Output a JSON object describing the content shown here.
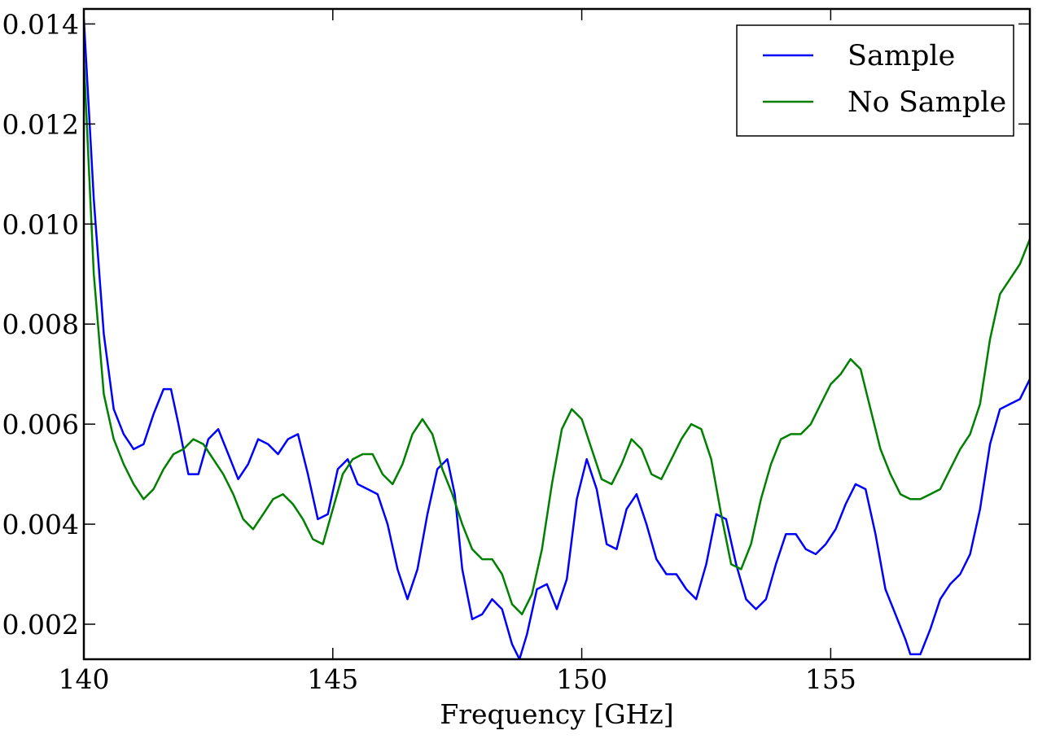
{
  "chart_data": {
    "type": "line",
    "title": "",
    "xlabel": "Frequency [GHz]",
    "ylabel": "",
    "xlim": [
      140,
      159
    ],
    "ylim": [
      0.0013,
      0.0143
    ],
    "grid": false,
    "legend_position": "top-right",
    "xticks": [
      140,
      145,
      150,
      155
    ],
    "xtick_labels": [
      "140",
      "145",
      "150",
      "155"
    ],
    "yticks": [
      0.002,
      0.004,
      0.006,
      0.008,
      0.01,
      0.012,
      0.014
    ],
    "ytick_labels": [
      "0.002",
      "0.004",
      "0.006",
      "0.008",
      "0.010",
      "0.012",
      "0.014"
    ],
    "series": [
      {
        "name": "Sample",
        "color": "#0000ff",
        "points": [
          [
            140.0,
            0.0141
          ],
          [
            140.2,
            0.0105
          ],
          [
            140.4,
            0.0078
          ],
          [
            140.6,
            0.0063
          ],
          [
            140.8,
            0.0058
          ],
          [
            141.0,
            0.0055
          ],
          [
            141.2,
            0.0056
          ],
          [
            141.4,
            0.0062
          ],
          [
            141.6,
            0.0067
          ],
          [
            141.75,
            0.0067
          ],
          [
            141.9,
            0.006
          ],
          [
            142.1,
            0.005
          ],
          [
            142.3,
            0.005
          ],
          [
            142.5,
            0.0057
          ],
          [
            142.7,
            0.0059
          ],
          [
            142.9,
            0.0054
          ],
          [
            143.1,
            0.0049
          ],
          [
            143.3,
            0.0052
          ],
          [
            143.5,
            0.0057
          ],
          [
            143.7,
            0.0056
          ],
          [
            143.9,
            0.0054
          ],
          [
            144.1,
            0.0057
          ],
          [
            144.3,
            0.0058
          ],
          [
            144.5,
            0.005
          ],
          [
            144.7,
            0.0041
          ],
          [
            144.9,
            0.0042
          ],
          [
            145.1,
            0.0051
          ],
          [
            145.3,
            0.0053
          ],
          [
            145.5,
            0.0048
          ],
          [
            145.7,
            0.0047
          ],
          [
            145.9,
            0.0046
          ],
          [
            146.1,
            0.004
          ],
          [
            146.3,
            0.0031
          ],
          [
            146.5,
            0.0025
          ],
          [
            146.7,
            0.0031
          ],
          [
            146.9,
            0.0042
          ],
          [
            147.1,
            0.0051
          ],
          [
            147.3,
            0.0053
          ],
          [
            147.45,
            0.0046
          ],
          [
            147.6,
            0.0031
          ],
          [
            147.8,
            0.0021
          ],
          [
            148.0,
            0.0022
          ],
          [
            148.2,
            0.0025
          ],
          [
            148.4,
            0.0023
          ],
          [
            148.6,
            0.0016
          ],
          [
            148.75,
            0.0013
          ],
          [
            148.9,
            0.0018
          ],
          [
            149.1,
            0.0027
          ],
          [
            149.3,
            0.0028
          ],
          [
            149.5,
            0.0023
          ],
          [
            149.7,
            0.0029
          ],
          [
            149.9,
            0.0045
          ],
          [
            150.1,
            0.0053
          ],
          [
            150.3,
            0.0047
          ],
          [
            150.5,
            0.0036
          ],
          [
            150.7,
            0.0035
          ],
          [
            150.9,
            0.0043
          ],
          [
            151.1,
            0.0046
          ],
          [
            151.3,
            0.004
          ],
          [
            151.5,
            0.0033
          ],
          [
            151.7,
            0.003
          ],
          [
            151.9,
            0.003
          ],
          [
            152.1,
            0.0027
          ],
          [
            152.3,
            0.0025
          ],
          [
            152.5,
            0.0032
          ],
          [
            152.7,
            0.0042
          ],
          [
            152.9,
            0.0041
          ],
          [
            153.1,
            0.0032
          ],
          [
            153.3,
            0.0025
          ],
          [
            153.5,
            0.0023
          ],
          [
            153.7,
            0.0025
          ],
          [
            153.9,
            0.0032
          ],
          [
            154.1,
            0.0038
          ],
          [
            154.3,
            0.0038
          ],
          [
            154.5,
            0.0035
          ],
          [
            154.7,
            0.0034
          ],
          [
            154.9,
            0.0036
          ],
          [
            155.1,
            0.0039
          ],
          [
            155.3,
            0.0044
          ],
          [
            155.5,
            0.0048
          ],
          [
            155.7,
            0.0047
          ],
          [
            155.9,
            0.0038
          ],
          [
            156.1,
            0.0027
          ],
          [
            156.3,
            0.0022
          ],
          [
            156.5,
            0.0017
          ],
          [
            156.6,
            0.0014
          ],
          [
            156.8,
            0.0014
          ],
          [
            157.0,
            0.0019
          ],
          [
            157.2,
            0.0025
          ],
          [
            157.4,
            0.0028
          ],
          [
            157.6,
            0.003
          ],
          [
            157.8,
            0.0034
          ],
          [
            158.0,
            0.0043
          ],
          [
            158.2,
            0.0056
          ],
          [
            158.4,
            0.0063
          ],
          [
            158.6,
            0.0064
          ],
          [
            158.8,
            0.0065
          ],
          [
            159.0,
            0.0069
          ]
        ]
      },
      {
        "name": "No Sample",
        "color": "#008000",
        "points": [
          [
            140.0,
            0.0133
          ],
          [
            140.2,
            0.009
          ],
          [
            140.4,
            0.0066
          ],
          [
            140.6,
            0.0057
          ],
          [
            140.8,
            0.0052
          ],
          [
            141.0,
            0.0048
          ],
          [
            141.2,
            0.0045
          ],
          [
            141.4,
            0.0047
          ],
          [
            141.6,
            0.0051
          ],
          [
            141.8,
            0.0054
          ],
          [
            142.0,
            0.0055
          ],
          [
            142.2,
            0.0057
          ],
          [
            142.4,
            0.0056
          ],
          [
            142.6,
            0.0053
          ],
          [
            142.8,
            0.005
          ],
          [
            143.0,
            0.0046
          ],
          [
            143.2,
            0.0041
          ],
          [
            143.4,
            0.0039
          ],
          [
            143.6,
            0.0042
          ],
          [
            143.8,
            0.0045
          ],
          [
            144.0,
            0.0046
          ],
          [
            144.2,
            0.0044
          ],
          [
            144.4,
            0.0041
          ],
          [
            144.6,
            0.0037
          ],
          [
            144.8,
            0.0036
          ],
          [
            145.0,
            0.0043
          ],
          [
            145.2,
            0.005
          ],
          [
            145.4,
            0.0053
          ],
          [
            145.6,
            0.0054
          ],
          [
            145.8,
            0.0054
          ],
          [
            146.0,
            0.005
          ],
          [
            146.2,
            0.0048
          ],
          [
            146.4,
            0.0052
          ],
          [
            146.6,
            0.0058
          ],
          [
            146.8,
            0.0061
          ],
          [
            147.0,
            0.0058
          ],
          [
            147.2,
            0.0051
          ],
          [
            147.4,
            0.0046
          ],
          [
            147.6,
            0.004
          ],
          [
            147.8,
            0.0035
          ],
          [
            148.0,
            0.0033
          ],
          [
            148.2,
            0.0033
          ],
          [
            148.4,
            0.003
          ],
          [
            148.6,
            0.0024
          ],
          [
            148.8,
            0.0022
          ],
          [
            149.0,
            0.0026
          ],
          [
            149.2,
            0.0035
          ],
          [
            149.4,
            0.0048
          ],
          [
            149.6,
            0.0059
          ],
          [
            149.8,
            0.0063
          ],
          [
            150.0,
            0.0061
          ],
          [
            150.2,
            0.0055
          ],
          [
            150.4,
            0.0049
          ],
          [
            150.6,
            0.0048
          ],
          [
            150.8,
            0.0052
          ],
          [
            151.0,
            0.0057
          ],
          [
            151.2,
            0.0055
          ],
          [
            151.4,
            0.005
          ],
          [
            151.6,
            0.0049
          ],
          [
            151.8,
            0.0053
          ],
          [
            152.0,
            0.0057
          ],
          [
            152.2,
            0.006
          ],
          [
            152.4,
            0.0059
          ],
          [
            152.6,
            0.0053
          ],
          [
            152.8,
            0.0042
          ],
          [
            153.0,
            0.0032
          ],
          [
            153.2,
            0.0031
          ],
          [
            153.4,
            0.0036
          ],
          [
            153.6,
            0.0045
          ],
          [
            153.8,
            0.0052
          ],
          [
            154.0,
            0.0057
          ],
          [
            154.2,
            0.0058
          ],
          [
            154.4,
            0.0058
          ],
          [
            154.6,
            0.006
          ],
          [
            154.8,
            0.0064
          ],
          [
            155.0,
            0.0068
          ],
          [
            155.2,
            0.007
          ],
          [
            155.4,
            0.0073
          ],
          [
            155.6,
            0.0071
          ],
          [
            155.8,
            0.0063
          ],
          [
            156.0,
            0.0055
          ],
          [
            156.2,
            0.005
          ],
          [
            156.4,
            0.0046
          ],
          [
            156.6,
            0.0045
          ],
          [
            156.8,
            0.0045
          ],
          [
            157.0,
            0.0046
          ],
          [
            157.2,
            0.0047
          ],
          [
            157.4,
            0.0051
          ],
          [
            157.6,
            0.0055
          ],
          [
            157.8,
            0.0058
          ],
          [
            158.0,
            0.0064
          ],
          [
            158.2,
            0.0077
          ],
          [
            158.4,
            0.0086
          ],
          [
            158.6,
            0.0089
          ],
          [
            158.8,
            0.0092
          ],
          [
            159.0,
            0.0097
          ]
        ]
      }
    ]
  }
}
